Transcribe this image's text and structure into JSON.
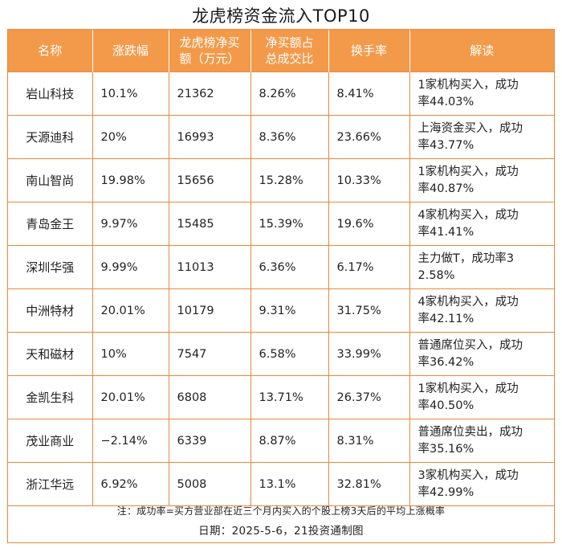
{
  "title": "龙虎榜资金流入TOP10",
  "headers": [
    "名称",
    "涨跌幅",
    "龙虎榜净买\n额（万元）",
    "净买额占\n总成交比",
    "换手率",
    "解读"
  ],
  "rows": [
    [
      "岩山科技",
      "10.1%",
      "21362",
      "8.26%",
      "8.41%",
      "1家机构买入，成功\n率44.03%"
    ],
    [
      "天源迪科",
      "20%",
      "16993",
      "8.36%",
      "23.66%",
      "上海资金买入，成功\n率43.77%"
    ],
    [
      "南山智尚",
      "19.98%",
      "15656",
      "15.28%",
      "10.33%",
      "1家机构买入，成功\n率40.87%"
    ],
    [
      "青岛金王",
      "9.97%",
      "15485",
      "15.39%",
      "19.6%",
      "4家机构买入，成功\n率41.41%"
    ],
    [
      "深圳华强",
      "9.99%",
      "11013",
      "6.36%",
      "6.17%",
      "主力做T，成功率3\n2.58%"
    ],
    [
      "中洲特材",
      "20.01%",
      "10179",
      "9.31%",
      "31.75%",
      "4家机构买入，成功\n率42.11%"
    ],
    [
      "天和磁材",
      "10%",
      "7547",
      "6.58%",
      "33.99%",
      "普通席位买入，成功\n率36.42%"
    ],
    [
      "金凯生科",
      "20.01%",
      "6808",
      "13.71%",
      "26.37%",
      "1家机构买入，成功\n率40.50%"
    ],
    [
      "茂业商业",
      "−2.14%",
      "6339",
      "8.87%",
      "8.31%",
      "普通席位卖出，成功\n率35.16%"
    ],
    [
      "浙江华远",
      "6.92%",
      "5008",
      "13.1%",
      "32.81%",
      "3家机构买入，成功\n率42.99%"
    ]
  ],
  "note": "注：成功率=买方营业部在近三个月内买入的个股上榜3天后的平均上涨概率",
  "date": "日期：2025-5-6，21投资通制图"
}
